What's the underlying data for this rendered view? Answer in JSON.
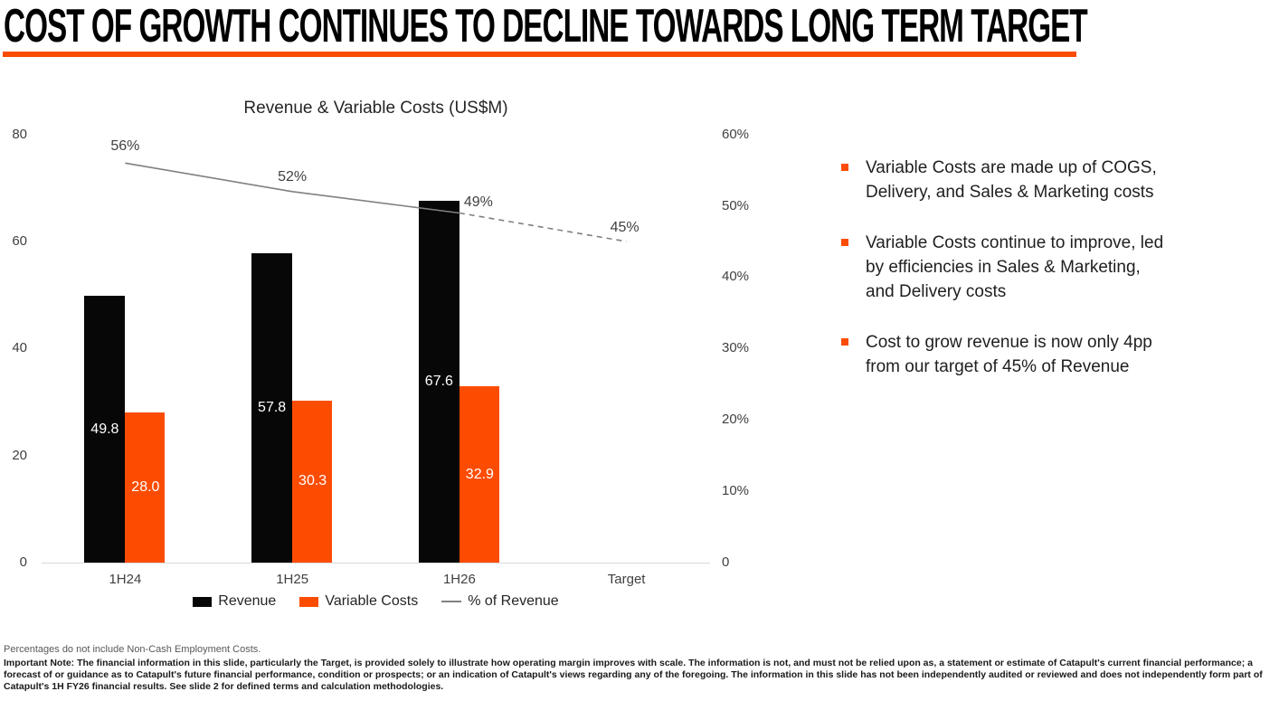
{
  "slide": {
    "title": "COST OF GROWTH CONTINUES TO DECLINE TOWARDS LONG TERM TARGET"
  },
  "colors": {
    "accent_orange": "#fc4c02",
    "bar_black": "#070707",
    "line_gray": "#808080"
  },
  "chart_data": {
    "type": "bar+line",
    "title": "Revenue & Variable Costs (US$M)",
    "categories": [
      "1H24",
      "1H25",
      "1H26",
      "Target"
    ],
    "series": [
      {
        "name": "Revenue",
        "type": "bar",
        "axis": "left",
        "color": "#070707",
        "label_color": "#ffffff",
        "values": [
          49.8,
          57.8,
          67.6,
          null
        ],
        "labels": [
          "49.8",
          "57.8",
          "67.6",
          null
        ]
      },
      {
        "name": "Variable Costs",
        "type": "bar",
        "axis": "left",
        "color": "#fc4c02",
        "label_color": "#ffffff",
        "values": [
          28.0,
          30.3,
          32.9,
          null
        ],
        "labels": [
          "28.0",
          "30.3",
          "32.9",
          null
        ]
      },
      {
        "name": "% of Revenue",
        "type": "line",
        "axis": "right",
        "color": "#808080",
        "values": [
          56,
          52,
          49,
          45
        ],
        "labels": [
          "56%",
          "52%",
          "49%",
          "45%"
        ],
        "dashed_from_index": 2,
        "label_offsets": [
          {
            "dx": 0,
            "dy": -18
          },
          {
            "dx": 0,
            "dy": -16
          },
          {
            "dx": 21,
            "dy": -11
          },
          {
            "dx": -2,
            "dy": -15
          }
        ]
      }
    ],
    "left_axis": {
      "max": 80,
      "values": [
        80,
        60,
        40,
        20,
        0
      ],
      "ticks": [
        "80",
        "60",
        "40",
        "20",
        "0"
      ]
    },
    "right_axis": {
      "max": 60,
      "values": [
        60,
        50,
        40,
        30,
        20,
        10,
        0
      ],
      "ticks": [
        "60%",
        "50%",
        "40%",
        "30%",
        "20%",
        "10%",
        "0"
      ]
    },
    "grid": false,
    "legend_position": "bottom-center",
    "legend": [
      {
        "label": "Revenue",
        "swatch": "rect",
        "color": "#070707"
      },
      {
        "label": "Variable Costs",
        "swatch": "rect",
        "color": "#fc4c02"
      },
      {
        "label": "% of Revenue",
        "swatch": "line",
        "color": "#808080"
      }
    ]
  },
  "bullets": [
    "Variable Costs are made up of COGS,\nDelivery, and Sales & Marketing costs",
    "Variable Costs continue to improve, led\nby efficiencies in Sales & Marketing,\nand Delivery costs",
    "Cost to grow revenue is now only 4pp\nfrom our target of 45% of Revenue"
  ],
  "footnotes": {
    "line1": "Percentages do not include Non-Cash Employment Costs.",
    "important_note": "Important Note: The financial information in this slide, particularly the Target, is provided solely to illustrate how operating margin improves with scale. The information is not, and must not be relied upon as, a statement or estimate of Catapult's current financial performance; a forecast of or guidance as to Catapult's future financial performance, condition or prospects; or an indication of Catapult's views regarding any of the foregoing. The information in this slide has not been independently audited or reviewed  and does not independently form part of Catapult's 1H FY26 financial results. See slide 2 for defined terms and calculation methodologies."
  }
}
